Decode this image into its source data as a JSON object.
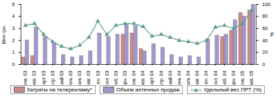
{
  "chart_data": {
    "type": "bar",
    "categories": [
      "янв. 03",
      "фев. 03",
      "март 03",
      "апр. 03",
      "май 03",
      "июнь 03",
      "июль 03",
      "авг. 03",
      "сен. 03",
      "окт. 03",
      "нояб. 03",
      "дек. 03",
      "янв. 04",
      "фев. 04",
      "март 04",
      "апр. 04",
      "май 04",
      "июнь 04",
      "июль 04",
      "авг. 04",
      "сен. 04",
      "окт. 04",
      "нояб. 04",
      "дек. 04",
      "янв. 05",
      "фев. 05"
    ],
    "y_label": "Млн грн.",
    "y2_label": "%",
    "series": [
      {
        "name": "Затраты на телерекламу*",
        "type": "bar",
        "color": "#c98a8a",
        "values": [
          0.6,
          0.7,
          0,
          0,
          0,
          0,
          0,
          0,
          0,
          0,
          0,
          2.5,
          2.6,
          1.3,
          0,
          0,
          0,
          0,
          0,
          0,
          0,
          0,
          2.3,
          2.8,
          4.3,
          4.5
        ]
      },
      {
        "name": "Объем аптечных продаж",
        "type": "bar",
        "color": "#a397d0",
        "values": [
          2.0,
          3.1,
          2.3,
          1.8,
          0.8,
          0.6,
          0.7,
          1.1,
          2.6,
          2.3,
          2.5,
          3.4,
          3.2,
          1.1,
          1.7,
          1.4,
          0.8,
          0.6,
          0.7,
          0.6,
          2.1,
          2.4,
          2.5,
          3.7,
          4.0,
          5.0
        ]
      },
      {
        "name": "Удельный вес ПРТ (%)",
        "type": "line",
        "axis": "y2",
        "marker": "triangle",
        "color": "#5f9e8f",
        "values": [
          65,
          68,
          50,
          38,
          30,
          26,
          32,
          45,
          72,
          50,
          65,
          68,
          68,
          63,
          47,
          50,
          45,
          40,
          38,
          35,
          40,
          62,
          65,
          60,
          68,
          90
        ]
      }
    ],
    "ylim": [
      0,
      5
    ],
    "yticks": [
      0,
      1,
      2,
      3,
      4,
      5
    ],
    "y2lim": [
      0,
      100
    ],
    "y2ticks": [
      0,
      20,
      40,
      60,
      80,
      100
    ],
    "legend": "bottom"
  }
}
